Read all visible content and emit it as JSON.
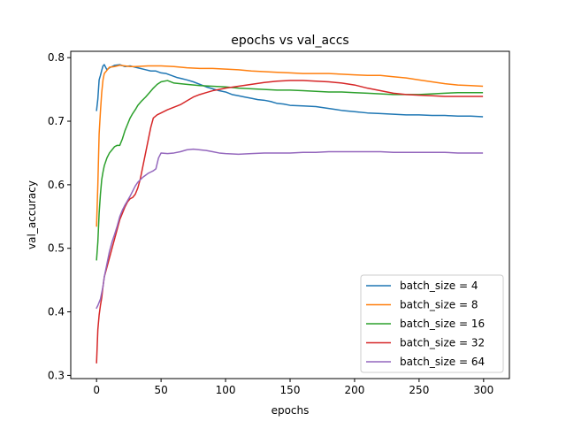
{
  "chart_data": {
    "type": "line",
    "title": "epochs vs val_accs",
    "xlabel": "epochs",
    "ylabel": "val_accuracy",
    "xlim": [
      -20,
      320
    ],
    "ylim": [
      0.295,
      0.81
    ],
    "xticks": [
      0,
      50,
      100,
      150,
      200,
      250,
      300
    ],
    "yticks": [
      0.3,
      0.4,
      0.5,
      0.6,
      0.7,
      0.8
    ],
    "ytick_labels": [
      "0.3",
      "0.4",
      "0.5",
      "0.6",
      "0.7",
      "0.8"
    ],
    "grid": false,
    "legend_position": "lower-right",
    "series": [
      {
        "name": "batch_size = 4",
        "color": "#1f77b4",
        "points": [
          [
            0,
            0.717
          ],
          [
            1,
            0.735
          ],
          [
            2,
            0.765
          ],
          [
            3,
            0.772
          ],
          [
            4,
            0.78
          ],
          [
            5,
            0.787
          ],
          [
            6,
            0.789
          ],
          [
            8,
            0.781
          ],
          [
            10,
            0.784
          ],
          [
            14,
            0.788
          ],
          [
            18,
            0.789
          ],
          [
            22,
            0.786
          ],
          [
            26,
            0.787
          ],
          [
            30,
            0.785
          ],
          [
            34,
            0.783
          ],
          [
            38,
            0.781
          ],
          [
            42,
            0.779
          ],
          [
            46,
            0.779
          ],
          [
            50,
            0.776
          ],
          [
            54,
            0.775
          ],
          [
            58,
            0.772
          ],
          [
            62,
            0.769
          ],
          [
            66,
            0.767
          ],
          [
            70,
            0.765
          ],
          [
            75,
            0.762
          ],
          [
            80,
            0.758
          ],
          [
            85,
            0.754
          ],
          [
            90,
            0.751
          ],
          [
            95,
            0.748
          ],
          [
            100,
            0.746
          ],
          [
            105,
            0.742
          ],
          [
            110,
            0.74
          ],
          [
            115,
            0.738
          ],
          [
            120,
            0.736
          ],
          [
            125,
            0.734
          ],
          [
            130,
            0.733
          ],
          [
            135,
            0.731
          ],
          [
            140,
            0.728
          ],
          [
            145,
            0.727
          ],
          [
            150,
            0.725
          ],
          [
            160,
            0.724
          ],
          [
            170,
            0.723
          ],
          [
            180,
            0.72
          ],
          [
            190,
            0.717
          ],
          [
            200,
            0.715
          ],
          [
            210,
            0.713
          ],
          [
            220,
            0.712
          ],
          [
            230,
            0.711
          ],
          [
            240,
            0.71
          ],
          [
            250,
            0.71
          ],
          [
            260,
            0.709
          ],
          [
            270,
            0.709
          ],
          [
            280,
            0.708
          ],
          [
            290,
            0.708
          ],
          [
            299,
            0.707
          ]
        ]
      },
      {
        "name": "batch_size = 8",
        "color": "#ff7f0e",
        "points": [
          [
            0,
            0.535
          ],
          [
            1,
            0.6
          ],
          [
            2,
            0.68
          ],
          [
            3,
            0.715
          ],
          [
            4,
            0.745
          ],
          [
            5,
            0.765
          ],
          [
            6,
            0.775
          ],
          [
            8,
            0.78
          ],
          [
            10,
            0.785
          ],
          [
            14,
            0.786
          ],
          [
            18,
            0.788
          ],
          [
            22,
            0.787
          ],
          [
            26,
            0.786
          ],
          [
            30,
            0.786
          ],
          [
            40,
            0.787
          ],
          [
            50,
            0.787
          ],
          [
            60,
            0.786
          ],
          [
            70,
            0.784
          ],
          [
            80,
            0.783
          ],
          [
            90,
            0.783
          ],
          [
            100,
            0.782
          ],
          [
            110,
            0.781
          ],
          [
            120,
            0.779
          ],
          [
            130,
            0.778
          ],
          [
            140,
            0.777
          ],
          [
            150,
            0.776
          ],
          [
            160,
            0.775
          ],
          [
            170,
            0.775
          ],
          [
            180,
            0.775
          ],
          [
            190,
            0.774
          ],
          [
            200,
            0.773
          ],
          [
            210,
            0.772
          ],
          [
            220,
            0.772
          ],
          [
            230,
            0.77
          ],
          [
            240,
            0.768
          ],
          [
            250,
            0.765
          ],
          [
            260,
            0.762
          ],
          [
            270,
            0.759
          ],
          [
            280,
            0.757
          ],
          [
            290,
            0.756
          ],
          [
            299,
            0.755
          ]
        ]
      },
      {
        "name": "batch_size = 16",
        "color": "#2ca02c",
        "points": [
          [
            0,
            0.482
          ],
          [
            1,
            0.51
          ],
          [
            2,
            0.555
          ],
          [
            3,
            0.585
          ],
          [
            4,
            0.608
          ],
          [
            5,
            0.62
          ],
          [
            6,
            0.63
          ],
          [
            8,
            0.642
          ],
          [
            10,
            0.65
          ],
          [
            12,
            0.655
          ],
          [
            14,
            0.66
          ],
          [
            16,
            0.662
          ],
          [
            18,
            0.662
          ],
          [
            20,
            0.672
          ],
          [
            22,
            0.685
          ],
          [
            24,
            0.695
          ],
          [
            26,
            0.705
          ],
          [
            28,
            0.712
          ],
          [
            30,
            0.718
          ],
          [
            32,
            0.725
          ],
          [
            35,
            0.732
          ],
          [
            38,
            0.738
          ],
          [
            41,
            0.745
          ],
          [
            44,
            0.752
          ],
          [
            47,
            0.758
          ],
          [
            50,
            0.762
          ],
          [
            55,
            0.764
          ],
          [
            60,
            0.76
          ],
          [
            65,
            0.759
          ],
          [
            70,
            0.758
          ],
          [
            80,
            0.756
          ],
          [
            90,
            0.755
          ],
          [
            100,
            0.754
          ],
          [
            110,
            0.752
          ],
          [
            120,
            0.751
          ],
          [
            130,
            0.75
          ],
          [
            140,
            0.749
          ],
          [
            150,
            0.749
          ],
          [
            160,
            0.748
          ],
          [
            170,
            0.747
          ],
          [
            180,
            0.746
          ],
          [
            190,
            0.746
          ],
          [
            200,
            0.745
          ],
          [
            210,
            0.744
          ],
          [
            220,
            0.743
          ],
          [
            230,
            0.742
          ],
          [
            240,
            0.742
          ],
          [
            250,
            0.742
          ],
          [
            260,
            0.743
          ],
          [
            270,
            0.744
          ],
          [
            280,
            0.745
          ],
          [
            290,
            0.745
          ],
          [
            299,
            0.745
          ]
        ]
      },
      {
        "name": "batch_size = 32",
        "color": "#d62728",
        "points": [
          [
            0,
            0.32
          ],
          [
            1,
            0.372
          ],
          [
            2,
            0.395
          ],
          [
            3,
            0.41
          ],
          [
            4,
            0.422
          ],
          [
            5,
            0.44
          ],
          [
            6,
            0.455
          ],
          [
            8,
            0.47
          ],
          [
            10,
            0.485
          ],
          [
            12,
            0.5
          ],
          [
            14,
            0.515
          ],
          [
            16,
            0.53
          ],
          [
            18,
            0.545
          ],
          [
            20,
            0.555
          ],
          [
            22,
            0.565
          ],
          [
            24,
            0.573
          ],
          [
            26,
            0.578
          ],
          [
            28,
            0.58
          ],
          [
            30,
            0.585
          ],
          [
            32,
            0.595
          ],
          [
            34,
            0.61
          ],
          [
            36,
            0.63
          ],
          [
            38,
            0.65
          ],
          [
            40,
            0.67
          ],
          [
            42,
            0.69
          ],
          [
            44,
            0.705
          ],
          [
            47,
            0.71
          ],
          [
            50,
            0.713
          ],
          [
            55,
            0.718
          ],
          [
            60,
            0.722
          ],
          [
            65,
            0.726
          ],
          [
            70,
            0.732
          ],
          [
            75,
            0.738
          ],
          [
            80,
            0.742
          ],
          [
            85,
            0.745
          ],
          [
            90,
            0.748
          ],
          [
            95,
            0.75
          ],
          [
            100,
            0.752
          ],
          [
            110,
            0.755
          ],
          [
            120,
            0.758
          ],
          [
            130,
            0.761
          ],
          [
            140,
            0.763
          ],
          [
            150,
            0.764
          ],
          [
            160,
            0.764
          ],
          [
            170,
            0.763
          ],
          [
            180,
            0.762
          ],
          [
            190,
            0.76
          ],
          [
            200,
            0.757
          ],
          [
            210,
            0.752
          ],
          [
            220,
            0.748
          ],
          [
            230,
            0.744
          ],
          [
            240,
            0.742
          ],
          [
            250,
            0.741
          ],
          [
            260,
            0.74
          ],
          [
            270,
            0.739
          ],
          [
            280,
            0.739
          ],
          [
            290,
            0.739
          ],
          [
            299,
            0.739
          ]
        ]
      },
      {
        "name": "batch_size = 64",
        "color": "#9467bd",
        "points": [
          [
            0,
            0.406
          ],
          [
            1,
            0.41
          ],
          [
            2,
            0.415
          ],
          [
            3,
            0.42
          ],
          [
            4,
            0.43
          ],
          [
            5,
            0.44
          ],
          [
            6,
            0.455
          ],
          [
            8,
            0.475
          ],
          [
            10,
            0.495
          ],
          [
            12,
            0.51
          ],
          [
            14,
            0.522
          ],
          [
            16,
            0.535
          ],
          [
            18,
            0.55
          ],
          [
            20,
            0.56
          ],
          [
            22,
            0.568
          ],
          [
            24,
            0.575
          ],
          [
            26,
            0.582
          ],
          [
            28,
            0.59
          ],
          [
            30,
            0.598
          ],
          [
            32,
            0.604
          ],
          [
            34,
            0.608
          ],
          [
            36,
            0.612
          ],
          [
            38,
            0.615
          ],
          [
            40,
            0.618
          ],
          [
            42,
            0.62
          ],
          [
            44,
            0.622
          ],
          [
            46,
            0.625
          ],
          [
            48,
            0.642
          ],
          [
            50,
            0.65
          ],
          [
            55,
            0.649
          ],
          [
            60,
            0.65
          ],
          [
            65,
            0.652
          ],
          [
            70,
            0.655
          ],
          [
            75,
            0.656
          ],
          [
            80,
            0.655
          ],
          [
            85,
            0.654
          ],
          [
            90,
            0.652
          ],
          [
            95,
            0.65
          ],
          [
            100,
            0.649
          ],
          [
            110,
            0.648
          ],
          [
            120,
            0.649
          ],
          [
            130,
            0.65
          ],
          [
            140,
            0.65
          ],
          [
            150,
            0.65
          ],
          [
            160,
            0.651
          ],
          [
            170,
            0.651
          ],
          [
            180,
            0.652
          ],
          [
            190,
            0.652
          ],
          [
            200,
            0.652
          ],
          [
            210,
            0.652
          ],
          [
            220,
            0.652
          ],
          [
            230,
            0.651
          ],
          [
            240,
            0.651
          ],
          [
            250,
            0.651
          ],
          [
            260,
            0.651
          ],
          [
            270,
            0.651
          ],
          [
            280,
            0.65
          ],
          [
            290,
            0.65
          ],
          [
            299,
            0.65
          ]
        ]
      }
    ]
  }
}
